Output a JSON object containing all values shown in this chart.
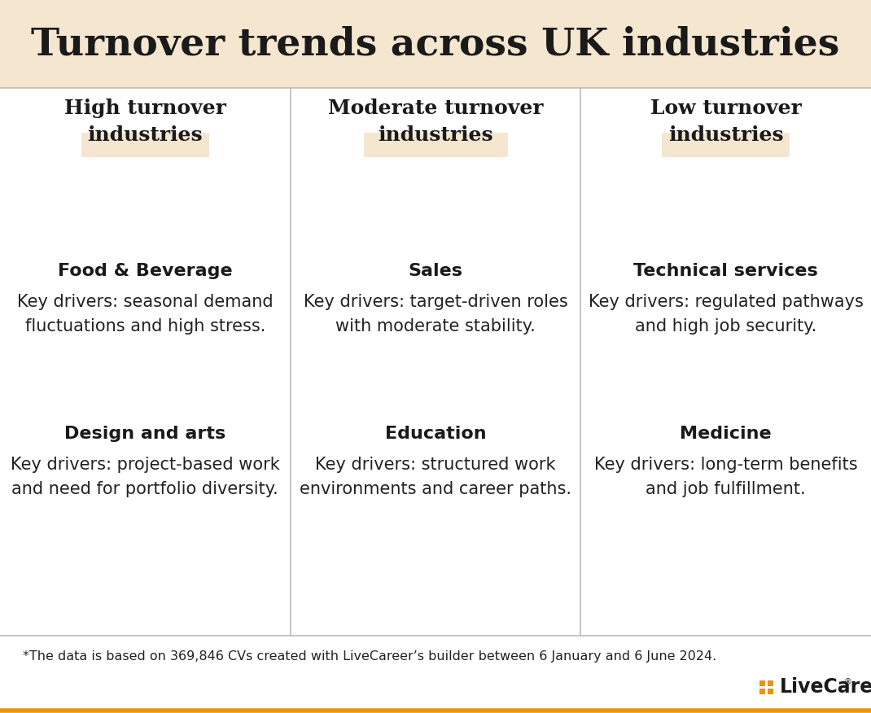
{
  "title": "Turnover trends across UK industries",
  "title_bg_color": "#f5e6d0",
  "main_bg_color": "#ffffff",
  "header_highlight_color": "#f5e6d0",
  "columns": [
    {
      "header": "High turnover\nindustries",
      "items": [
        {
          "industry": "Food & Beverage",
          "description": "Key drivers: seasonal demand\nfluctuations and high stress."
        },
        {
          "industry": "Design and arts",
          "description": "Key drivers: project-based work\nand need for portfolio diversity."
        }
      ]
    },
    {
      "header": "Moderate turnover\nindustries",
      "items": [
        {
          "industry": "Sales",
          "description": "Key drivers: target-driven roles\nwith moderate stability."
        },
        {
          "industry": "Education",
          "description": "Key drivers: structured work\nenvironments and career paths."
        }
      ]
    },
    {
      "header": "Low turnover\nindustries",
      "items": [
        {
          "industry": "Technical services",
          "description": "Key drivers: regulated pathways\nand high job security."
        },
        {
          "industry": "Medicine",
          "description": "Key drivers: long-term benefits\nand job fulfillment."
        }
      ]
    }
  ],
  "footnote": "*The data is based on 369,846 CVs created with LiveCareer’s builder between 6 January and 6 June 2024.",
  "logo_text": "LiveCareer",
  "logo_color": "#1a1a1a",
  "logo_dot_color": "#e8950a",
  "divider_color": "#bbbbbb",
  "text_color": "#1a1a1a",
  "body_text_color": "#222222",
  "title_fontsize": 34,
  "header_fontsize": 18,
  "industry_fontsize": 16,
  "desc_fontsize": 15
}
